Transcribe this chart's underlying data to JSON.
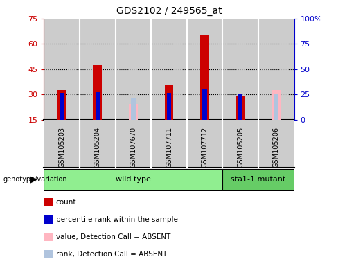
{
  "title": "GDS2102 / 249565_at",
  "samples": [
    "GSM105203",
    "GSM105204",
    "GSM107670",
    "GSM107711",
    "GSM107712",
    "GSM105205",
    "GSM105206"
  ],
  "count_values": [
    32.5,
    47.5,
    0,
    35.5,
    65,
    29.5,
    0
  ],
  "percentile_rank": [
    26.5,
    27.5,
    0,
    26.5,
    30.5,
    25.5,
    26.5
  ],
  "absent_value": [
    0,
    0,
    24.5,
    0,
    0,
    0,
    32.5
  ],
  "absent_rank": [
    0,
    0,
    21.5,
    0,
    0,
    0,
    25.5
  ],
  "is_absent": [
    false,
    false,
    true,
    false,
    false,
    false,
    true
  ],
  "groups": [
    {
      "label": "wild type",
      "start": 0,
      "end": 5,
      "color": "#90ee90"
    },
    {
      "label": "sta1-1 mutant",
      "start": 5,
      "end": 7,
      "color": "#66cc66"
    }
  ],
  "ylim_left": [
    15,
    75
  ],
  "ylim_right": [
    0,
    100
  ],
  "yticks_left": [
    15,
    30,
    45,
    60,
    75
  ],
  "yticks_right": [
    0,
    25,
    50,
    75,
    100
  ],
  "ytick_labels_right": [
    "0",
    "25",
    "50",
    "75",
    "100%"
  ],
  "left_axis_color": "#cc0000",
  "right_axis_color": "#0000cc",
  "count_color": "#cc0000",
  "rank_color": "#0000cc",
  "absent_val_color": "#ffb6c1",
  "absent_rank_color": "#b0c4de",
  "bg_color": "#cccccc",
  "separator_color": "#ffffff",
  "legend_items": [
    {
      "color": "#cc0000",
      "label": "count"
    },
    {
      "color": "#0000cc",
      "label": "percentile rank within the sample"
    },
    {
      "color": "#ffb6c1",
      "label": "value, Detection Call = ABSENT"
    },
    {
      "color": "#b0c4de",
      "label": "rank, Detection Call = ABSENT"
    }
  ]
}
